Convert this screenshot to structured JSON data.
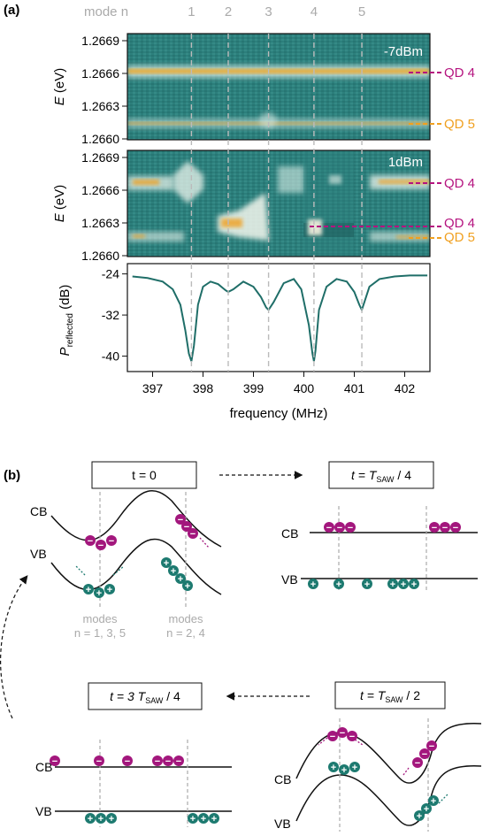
{
  "panel_a": {
    "label": "(a)",
    "mode_header": "mode n",
    "mode_numbers": [
      "1",
      "2",
      "3",
      "4",
      "5"
    ],
    "top_map": {
      "power": "-7dBm",
      "y_axis_label_italic": "E",
      "y_axis_label_rest": " (eV)",
      "y_ticks": [
        "1.2669",
        "1.2666",
        "1.2663",
        "1.2660"
      ],
      "qd_labels": [
        "QD 4",
        "QD 5"
      ]
    },
    "middle_map": {
      "power": "1dBm",
      "y_axis_label_italic": "E",
      "y_axis_label_rest": " (eV)",
      "y_ticks": [
        "1.2669",
        "1.2666",
        "1.2663",
        "1.2660"
      ],
      "qd_labels": [
        "QD 4",
        "QD 4",
        "QD 5"
      ]
    },
    "reflection": {
      "y_axis_label_main": "P",
      "y_axis_label_sub": "reflected",
      "y_axis_label_rest": " (dB)",
      "y_ticks": [
        "-24",
        "-32",
        "-40"
      ],
      "x_ticks": [
        "397",
        "398",
        "399",
        "400",
        "401",
        "402"
      ],
      "x_axis_label": "frequency (MHz)"
    },
    "colors": {
      "qd4": "#b5137f",
      "qd5": "#f0a020",
      "map_base": "#2c7f7c",
      "trace": "#1f6e68"
    }
  },
  "panel_b": {
    "label": "(b)",
    "states": [
      {
        "prefix": "t = 0",
        "subscript": "",
        "suffix": ""
      },
      {
        "prefix": "t = T",
        "subscript": "SAW",
        "suffix": " / 4"
      },
      {
        "prefix": "t = T",
        "subscript": "SAW",
        "suffix": " / 2"
      },
      {
        "prefix": "t = 3 T",
        "subscript": "SAW",
        "suffix": " / 4"
      }
    ],
    "band_labels": {
      "cb": "CB",
      "vb": "VB"
    },
    "electron_symbol": "−",
    "hole_symbol": "+",
    "modes_odd": [
      "modes",
      "n = 1, 3, 5"
    ],
    "modes_even": [
      "modes",
      "n = 2, 4"
    ],
    "colors": {
      "electron": "#a3177d",
      "hole": "#1d7a70"
    }
  },
  "chart_data": {
    "type": "line",
    "title": "",
    "xlabel": "frequency (MHz)",
    "ylabel": "P_reflected (dB)",
    "xlim": [
      396.5,
      402.5
    ],
    "ylim": [
      -43,
      -22
    ],
    "mode_frequencies": [
      397.77,
      398.5,
      399.3,
      400.2,
      401.15
    ],
    "x": [
      396.6,
      396.9,
      397.2,
      397.4,
      397.55,
      397.65,
      397.72,
      397.77,
      397.82,
      397.9,
      398.0,
      398.15,
      398.3,
      398.45,
      398.5,
      398.6,
      398.8,
      399.0,
      399.15,
      399.25,
      399.3,
      399.4,
      399.6,
      399.8,
      399.95,
      400.1,
      400.17,
      400.2,
      400.23,
      400.3,
      400.45,
      400.65,
      400.85,
      401.0,
      401.1,
      401.15,
      401.2,
      401.3,
      401.5,
      401.8,
      402.1,
      402.45
    ],
    "y": [
      -24.5,
      -24.8,
      -25.5,
      -27.0,
      -30.0,
      -35.0,
      -39.5,
      -41.0,
      -38.0,
      -30.0,
      -26.5,
      -25.5,
      -26.0,
      -27.2,
      -27.5,
      -27.0,
      -25.5,
      -26.5,
      -28.5,
      -30.5,
      -31.0,
      -29.5,
      -25.8,
      -25.0,
      -27.0,
      -34.0,
      -39.5,
      -41.0,
      -39.0,
      -31.0,
      -26.5,
      -25.0,
      -25.5,
      -27.5,
      -30.0,
      -31.0,
      -29.5,
      -26.5,
      -25.0,
      -24.5,
      -24.3,
      -24.3
    ]
  }
}
